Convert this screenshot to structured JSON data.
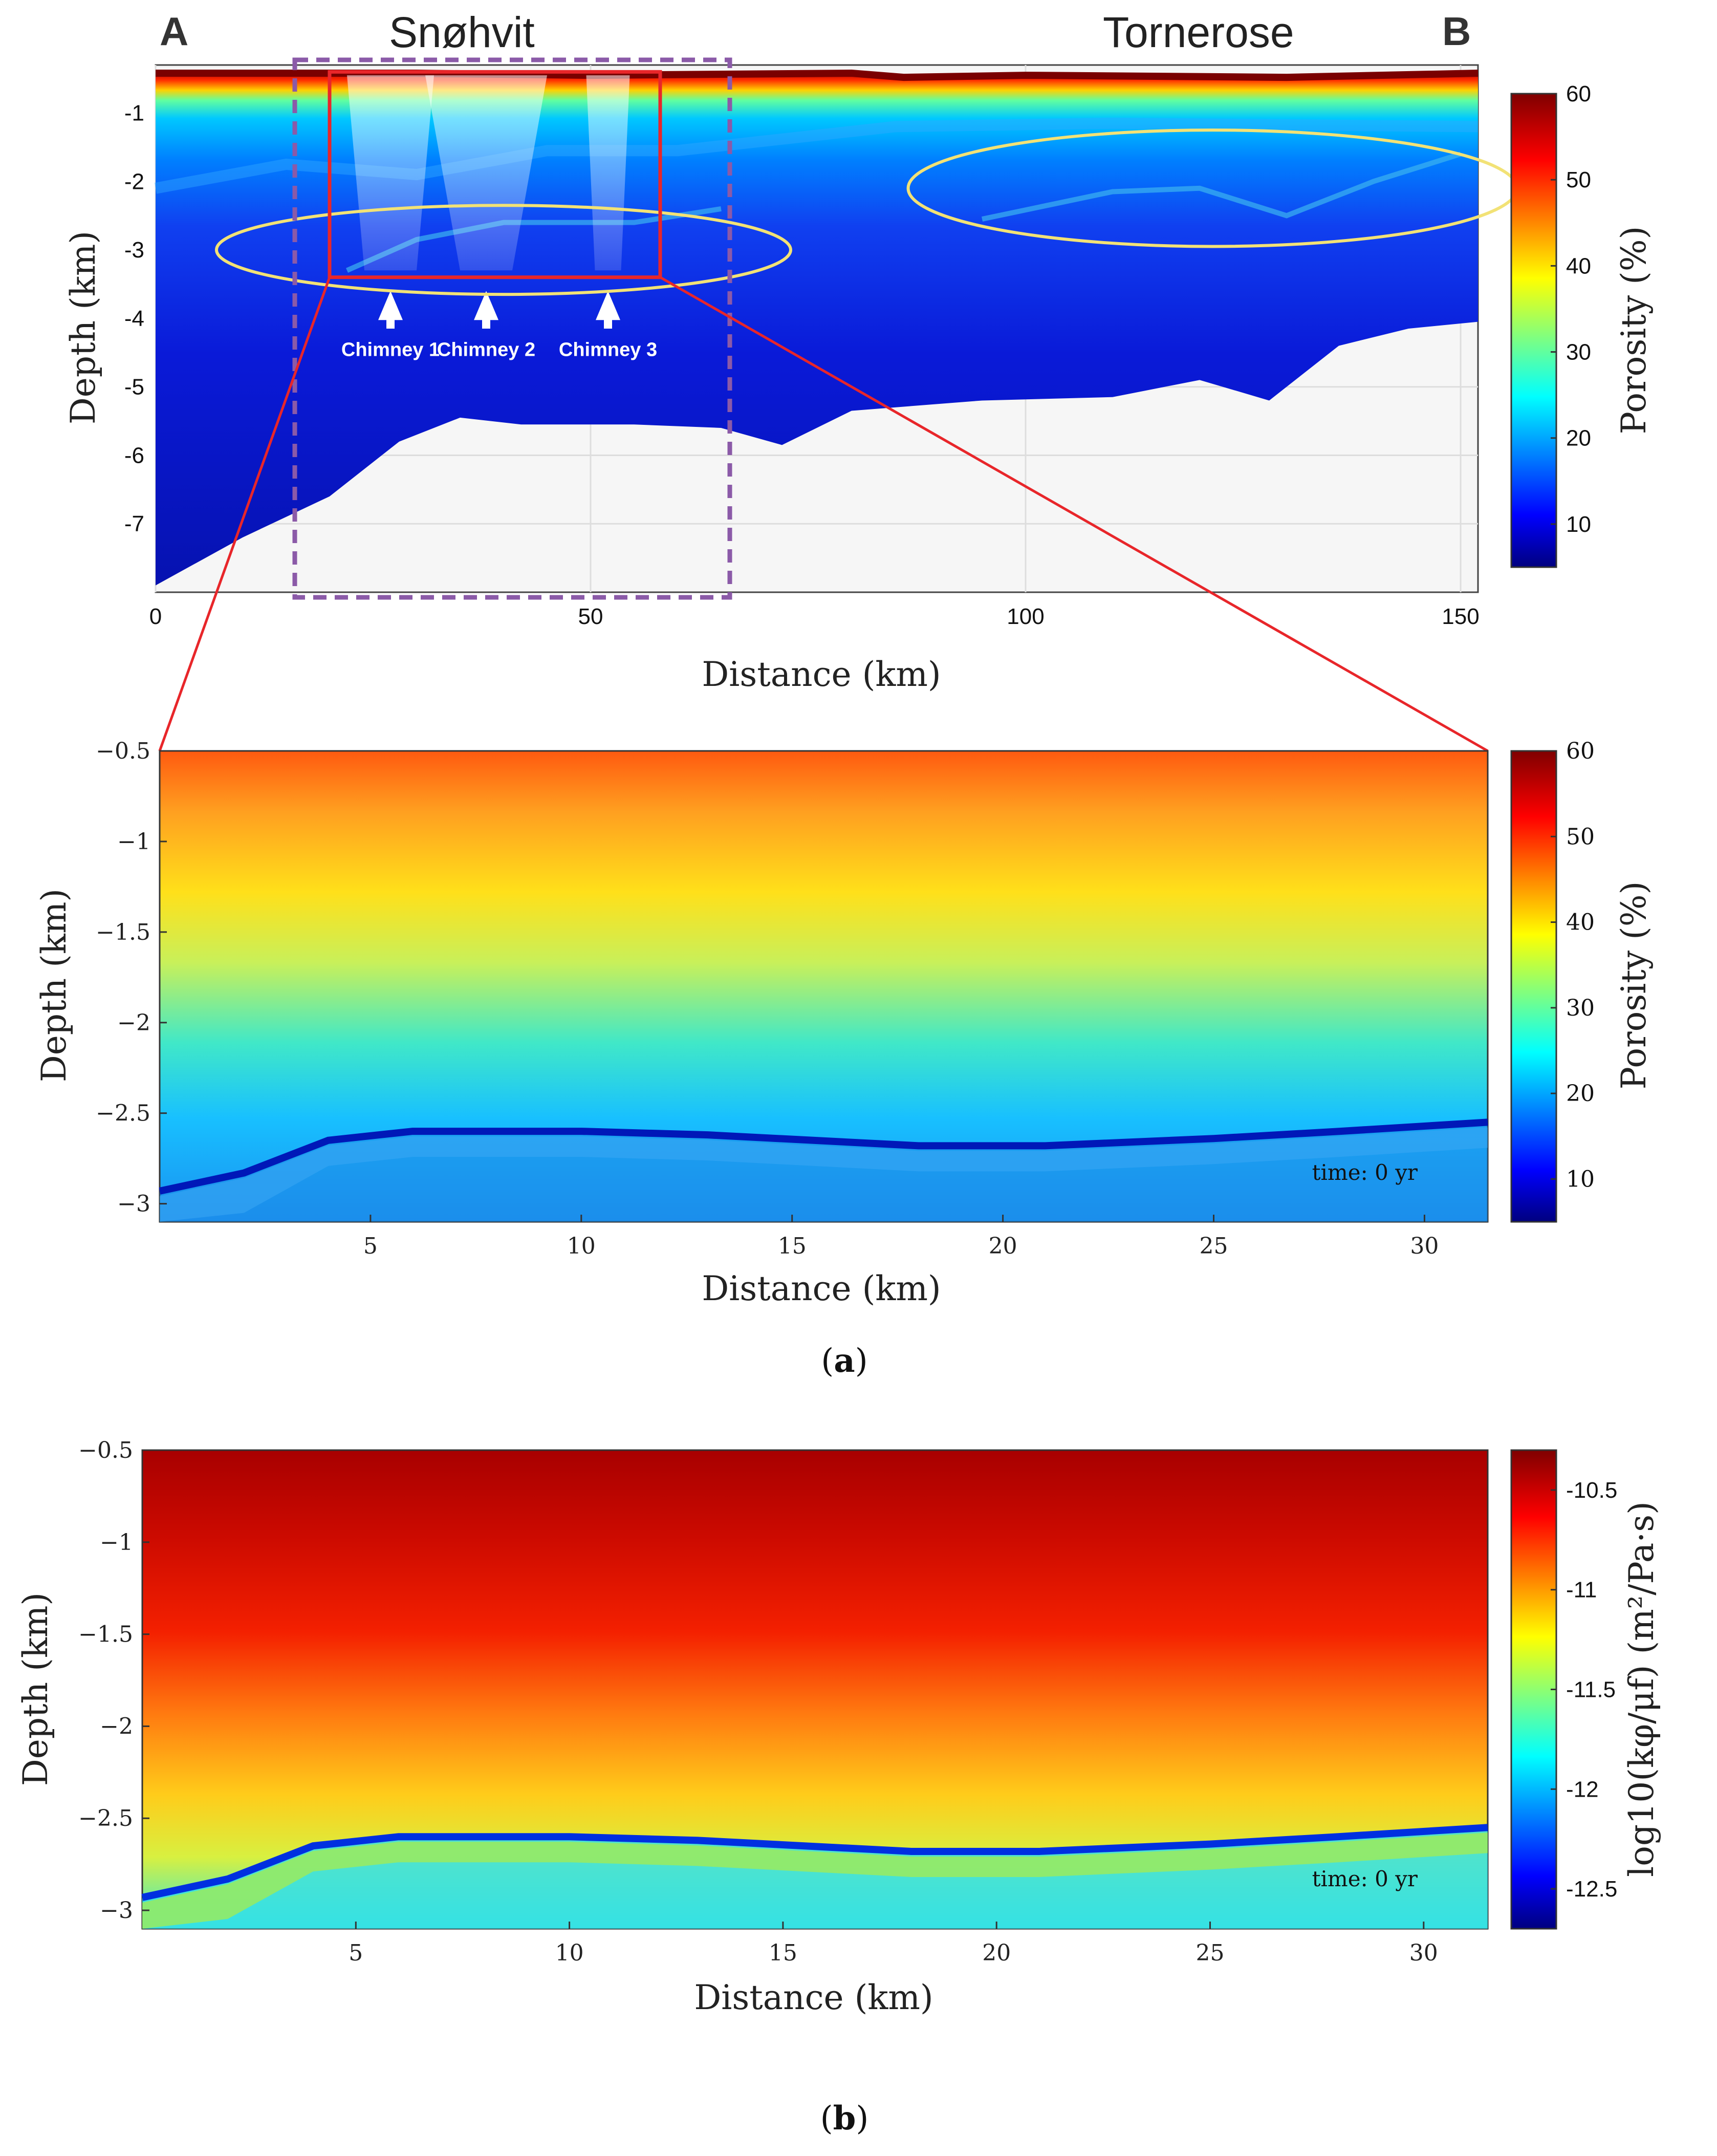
{
  "chart_data": [
    {
      "type": "heatmap",
      "panel": "top",
      "xlabel": "Distance (km)",
      "ylabel": "Depth (km)",
      "xlim": [
        0,
        152
      ],
      "ylim": [
        -8,
        -0.3
      ],
      "xticks": [
        0,
        50,
        100,
        150
      ],
      "yticks": [
        -1,
        -2,
        -3,
        -4,
        -5,
        -6,
        -7
      ],
      "colorbar": {
        "label": "Porosity (%)",
        "range": [
          5,
          60
        ],
        "ticks": [
          10,
          20,
          30,
          40,
          50,
          60
        ]
      },
      "end_labels": {
        "left": "A",
        "right": "B"
      },
      "field_labels": [
        "Snøhvit",
        "Tornerose"
      ],
      "chimneys": [
        {
          "label": "Chimney 1",
          "x": 27
        },
        {
          "label": "Chimney 2",
          "x": 38
        },
        {
          "label": "Chimney 3",
          "x": 52
        }
      ],
      "zoom_box_x": [
        20,
        58
      ],
      "zoom_box_depth": [
        -0.4,
        -3.4
      ],
      "bottom_boundary": [
        {
          "x": 0,
          "depth": -7.9
        },
        {
          "x": 10,
          "depth": -7.2
        },
        {
          "x": 20,
          "depth": -6.6
        },
        {
          "x": 28,
          "depth": -5.8
        },
        {
          "x": 35,
          "depth": -5.45
        },
        {
          "x": 42,
          "depth": -5.55
        },
        {
          "x": 55,
          "depth": -5.55
        },
        {
          "x": 65,
          "depth": -5.6
        },
        {
          "x": 72,
          "depth": -5.85
        },
        {
          "x": 80,
          "depth": -5.35
        },
        {
          "x": 95,
          "depth": -5.2
        },
        {
          "x": 110,
          "depth": -5.15
        },
        {
          "x": 120,
          "depth": -4.9
        },
        {
          "x": 128,
          "depth": -5.2
        },
        {
          "x": 136,
          "depth": -4.4
        },
        {
          "x": 144,
          "depth": -4.15
        },
        {
          "x": 152,
          "depth": -4.05
        }
      ]
    },
    {
      "type": "heatmap",
      "panel": "a",
      "caption": "a",
      "xlabel": "Distance (km)",
      "ylabel": "Depth (km)",
      "xlim": [
        0,
        31.5
      ],
      "ylim": [
        -3.1,
        -0.5
      ],
      "xticks": [
        5,
        10,
        15,
        20,
        25,
        30
      ],
      "yticks": [
        -0.5,
        -1,
        -1.5,
        -2,
        -2.5,
        -3
      ],
      "colorbar": {
        "label": "Porosity (%)",
        "range": [
          5,
          60
        ],
        "ticks": [
          10,
          20,
          30,
          40,
          50,
          60
        ]
      },
      "annotation": "time: 0 yr",
      "gradient": [
        {
          "depth": -0.5,
          "porosity": 52
        },
        {
          "depth": -1.0,
          "porosity": 45
        },
        {
          "depth": -1.5,
          "porosity": 37
        },
        {
          "depth": -2.0,
          "porosity": 27
        },
        {
          "depth": -2.5,
          "porosity": 20
        },
        {
          "depth": -3.1,
          "porosity": 15
        }
      ],
      "interface": [
        {
          "x": 0,
          "depth": -2.93
        },
        {
          "x": 2,
          "depth": -2.83
        },
        {
          "x": 4,
          "depth": -2.65
        },
        {
          "x": 6,
          "depth": -2.6
        },
        {
          "x": 10,
          "depth": -2.6
        },
        {
          "x": 13,
          "depth": -2.62
        },
        {
          "x": 18,
          "depth": -2.68
        },
        {
          "x": 21,
          "depth": -2.68
        },
        {
          "x": 25,
          "depth": -2.64
        },
        {
          "x": 28,
          "depth": -2.6
        },
        {
          "x": 31.5,
          "depth": -2.55
        }
      ]
    },
    {
      "type": "heatmap",
      "panel": "b",
      "caption": "b",
      "xlabel": "Distance (km)",
      "ylabel": "Depth (km)",
      "xlim": [
        0,
        31.5
      ],
      "ylim": [
        -3.1,
        -0.5
      ],
      "xticks": [
        5,
        10,
        15,
        20,
        25,
        30
      ],
      "yticks": [
        -0.5,
        -1,
        -1.5,
        -2,
        -2.5,
        -3
      ],
      "colorbar": {
        "label": "log10(kφ/μf) (m²/Pa·s)",
        "range": [
          -12.7,
          -10.3
        ],
        "ticks": [
          -10.5,
          -11,
          -11.5,
          -12,
          -12.5
        ]
      },
      "annotation": "time: 0 yr",
      "gradient": [
        {
          "depth": -0.5,
          "value": -10.35
        },
        {
          "depth": -1.0,
          "value": -10.6
        },
        {
          "depth": -1.5,
          "value": -10.8
        },
        {
          "depth": -2.0,
          "value": -11.05
        },
        {
          "depth": -2.5,
          "value": -11.4
        },
        {
          "depth": -3.1,
          "value": -11.8
        }
      ],
      "interface": [
        {
          "x": 0,
          "depth": -2.93
        },
        {
          "x": 2,
          "depth": -2.83
        },
        {
          "x": 4,
          "depth": -2.65
        },
        {
          "x": 6,
          "depth": -2.6
        },
        {
          "x": 10,
          "depth": -2.6
        },
        {
          "x": 13,
          "depth": -2.62
        },
        {
          "x": 18,
          "depth": -2.68
        },
        {
          "x": 21,
          "depth": -2.68
        },
        {
          "x": 25,
          "depth": -2.64
        },
        {
          "x": 28,
          "depth": -2.6
        },
        {
          "x": 31.5,
          "depth": -2.55
        }
      ]
    }
  ],
  "colors": {
    "jet": [
      "#00007f",
      "#0000ff",
      "#0080ff",
      "#00ffff",
      "#80ff80",
      "#ffff00",
      "#ff8000",
      "#ff0000",
      "#7f0000"
    ],
    "zoom_box": "#e8262a",
    "context_box": "#8b5aa8",
    "ellipse": "#f2e276",
    "arrow": "#ffffff"
  }
}
